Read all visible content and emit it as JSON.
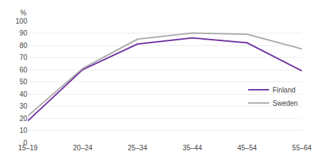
{
  "chart_data": {
    "type": "line",
    "ylabel": "%",
    "categories": [
      "15–19",
      "20–24",
      "25–34",
      "35–44",
      "45–54",
      "55–64"
    ],
    "series": [
      {
        "name": "Finland",
        "color": "#7030a0",
        "values": [
          18,
          60,
          81,
          86,
          82,
          59
        ]
      },
      {
        "name": "Sweden",
        "color": "#aaaaaa",
        "values": [
          22,
          61,
          85,
          90,
          89,
          77
        ]
      }
    ],
    "ylim": [
      0,
      100
    ],
    "yticks": [
      0,
      10,
      20,
      30,
      40,
      50,
      60,
      70,
      80,
      90,
      100
    ],
    "grid": true,
    "legend": "right"
  }
}
